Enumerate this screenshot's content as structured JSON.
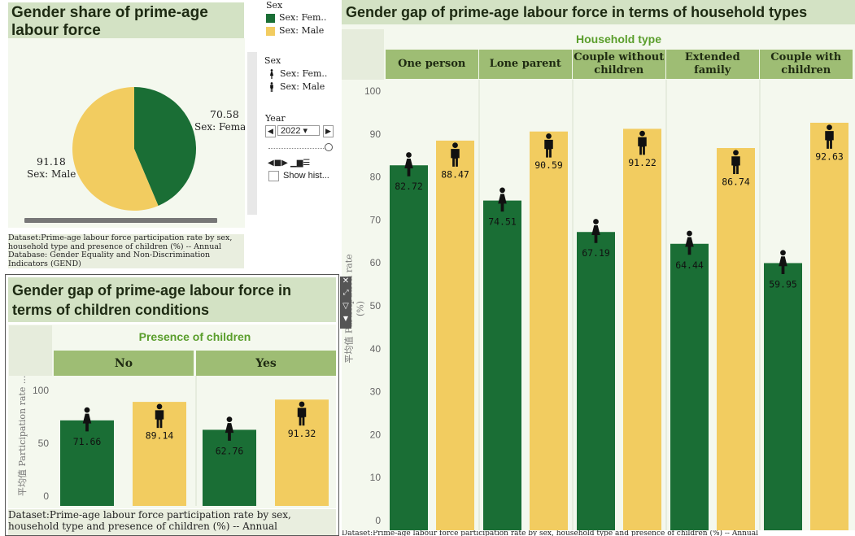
{
  "colors": {
    "female": "#1a6e35",
    "male": "#f2cc60",
    "header_green": "#9ebd74",
    "title_bg": "#d3e2c4",
    "panel_bg": "#f4f8ee",
    "accent_text": "#5a9e2c"
  },
  "pie_panel": {
    "title": "Gender share of prime-age labour force",
    "female_label_value": "70.58",
    "female_label_text": "Sex: Fema",
    "male_label_value": "91.18",
    "male_label_text": "Sex: Male",
    "dataset_note": "Dataset:Prime-age labour force participation rate by sex, household type and presence of children (%) -- Annual",
    "database_note": "Database: Gender Equality and Non-Discrimination Indicators (GEND)"
  },
  "legend": {
    "color_title": "Sex",
    "color_items": [
      "Sex: Fem..",
      "Sex: Male"
    ],
    "shape_title": "Sex",
    "shape_items": [
      "Sex: Fem..",
      "Sex: Male"
    ],
    "year_title": "Year",
    "year_value": "2022",
    "show_history": "Show hist..."
  },
  "household_panel": {
    "title": "Gender gap of prime-age labour force in terms of household types",
    "group_header": "Household type",
    "y_axis_label": "平均值 Participation rate (%)",
    "footer": "Dataset:Prime-age labour force participation rate by sex, household type and presence of children (%) -- Annual"
  },
  "children_panel": {
    "title": "Gender gap of prime-age labour force in terms of children conditions",
    "group_header": "Presence of children",
    "y_axis_label": "平均值 Participation rate ...",
    "dataset_note": "Dataset:Prime-age labour force participation rate by sex, household type and presence of children (%) -- Annual"
  },
  "chart_data": [
    {
      "type": "pie",
      "title": "Gender share of prime-age labour force",
      "categories": [
        "Sex: Female",
        "Sex: Male"
      ],
      "values": [
        70.58,
        91.18
      ]
    },
    {
      "type": "bar",
      "title": "Gender gap of prime-age labour force in terms of household types",
      "categories": [
        "One person",
        "Lone parent",
        "Couple without children",
        "Extended family",
        "Couple with children"
      ],
      "series": [
        {
          "name": "Sex: Female",
          "values": [
            82.72,
            74.51,
            67.19,
            64.44,
            59.95
          ]
        },
        {
          "name": "Sex: Male",
          "values": [
            88.47,
            90.59,
            91.22,
            86.74,
            92.63
          ]
        }
      ],
      "ylabel": "平均值 Participation rate (%)",
      "ylim": [
        0,
        100
      ],
      "yticks": [
        0,
        10,
        20,
        30,
        40,
        50,
        60,
        70,
        80,
        90,
        100
      ]
    },
    {
      "type": "bar",
      "title": "Gender gap of prime-age labour force in terms of children conditions",
      "categories": [
        "No",
        "Yes"
      ],
      "series": [
        {
          "name": "Sex: Female",
          "values": [
            71.66,
            62.76
          ]
        },
        {
          "name": "Sex: Male",
          "values": [
            89.14,
            91.32
          ]
        }
      ],
      "ylabel": "平均值 Participation rate ...",
      "ylim": [
        0,
        100
      ],
      "yticks": [
        0,
        50,
        100
      ]
    }
  ]
}
